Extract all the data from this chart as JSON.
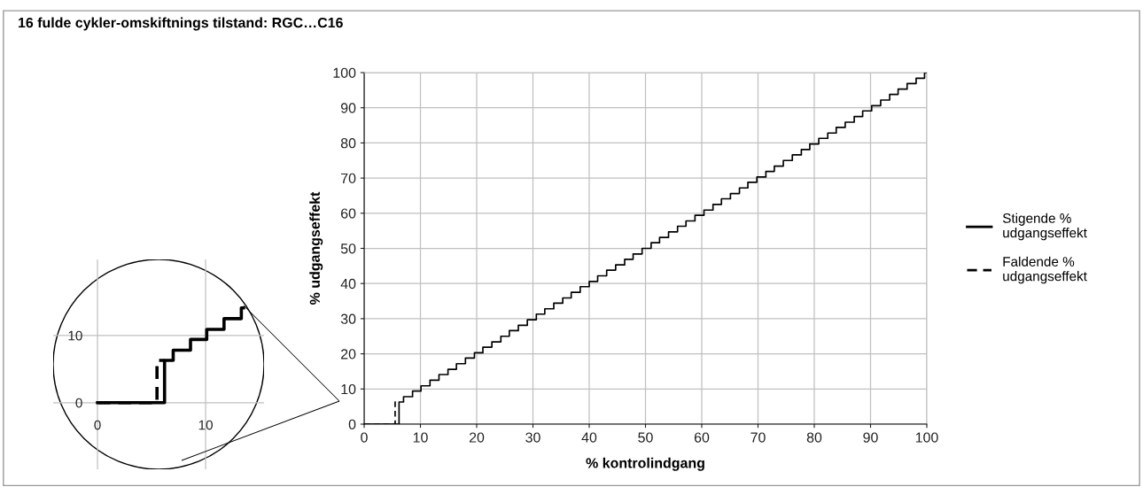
{
  "chart_data": [
    {
      "type": "step",
      "title": "16 fulde cykler-omskiftnings tilstand: RGC…C16",
      "xlabel": "% kontrolindgang",
      "ylabel": "% udgangseffekt",
      "xlim": [
        0,
        100
      ],
      "ylim": [
        0,
        100
      ],
      "xticks": [
        0,
        10,
        20,
        30,
        40,
        50,
        60,
        70,
        80,
        90,
        100
      ],
      "yticks": [
        0,
        10,
        20,
        30,
        40,
        50,
        60,
        70,
        80,
        90,
        100
      ],
      "grid": true,
      "legend": "right",
      "series": [
        {
          "name": "Stigende % udgangseffekt",
          "color": "#000000",
          "line_style": "solid",
          "x": [
            0,
            6.2,
            7.0,
            8.6,
            10.1,
            11.7,
            13.3,
            14.9,
            16.4,
            18.0,
            19.6,
            21.1,
            22.7,
            24.3,
            25.8,
            27.4,
            29.0,
            30.6,
            32.1,
            33.7,
            35.3,
            36.8,
            38.4,
            40.0,
            41.5,
            43.1,
            44.7,
            46.3,
            47.8,
            49.4,
            51.0,
            52.5,
            54.1,
            55.7,
            57.2,
            58.8,
            60.4,
            62.0,
            63.5,
            65.1,
            66.7,
            68.2,
            69.8,
            71.4,
            72.9,
            74.5,
            76.1,
            77.7,
            79.2,
            80.8,
            82.4,
            83.9,
            85.5,
            87.1,
            88.6,
            90.2,
            91.8,
            93.4,
            94.9,
            96.5,
            98.1,
            99.6,
            100
          ],
          "values": [
            0,
            6.3,
            7.8,
            9.4,
            10.9,
            12.5,
            14.1,
            15.6,
            17.2,
            18.8,
            20.3,
            21.9,
            23.4,
            25,
            26.6,
            28.1,
            29.7,
            31.3,
            32.8,
            34.4,
            35.9,
            37.5,
            39.1,
            40.6,
            42.2,
            43.8,
            45.3,
            46.9,
            48.4,
            50,
            51.6,
            53.1,
            54.7,
            56.3,
            57.8,
            59.4,
            60.9,
            62.5,
            64.1,
            65.6,
            67.2,
            68.8,
            70.3,
            71.9,
            73.4,
            75,
            76.6,
            78.1,
            79.7,
            81.3,
            82.8,
            84.4,
            85.9,
            87.5,
            89.1,
            90.6,
            92.2,
            93.8,
            95.3,
            96.9,
            98.4,
            100,
            100
          ]
        },
        {
          "name": "Faldende % udgangseffekt",
          "color": "#000000",
          "line_style": "dashed",
          "x": [
            0,
            5.5,
            6.2
          ],
          "values": [
            0,
            6.3,
            6.3
          ]
        }
      ]
    },
    {
      "type": "step",
      "xlim": [
        -4.1,
        15.4
      ],
      "ylim": [
        -9.9,
        21.3
      ],
      "xticks": [
        0,
        10
      ],
      "yticks": [
        0,
        10
      ],
      "grid": true,
      "series": [
        {
          "color": "#000000",
          "line_style": "solid",
          "x": [
            0,
            6.2,
            7.0,
            8.6,
            10.1,
            11.7,
            13.3,
            13.5
          ],
          "values": [
            0,
            6.3,
            7.8,
            9.4,
            10.9,
            12.5,
            14.1,
            14.1
          ]
        },
        {
          "color": "#000000",
          "line_style": "dashed",
          "x": [
            0,
            5.5,
            6.2
          ],
          "values": [
            0,
            6.3,
            6.3
          ]
        }
      ]
    }
  ]
}
